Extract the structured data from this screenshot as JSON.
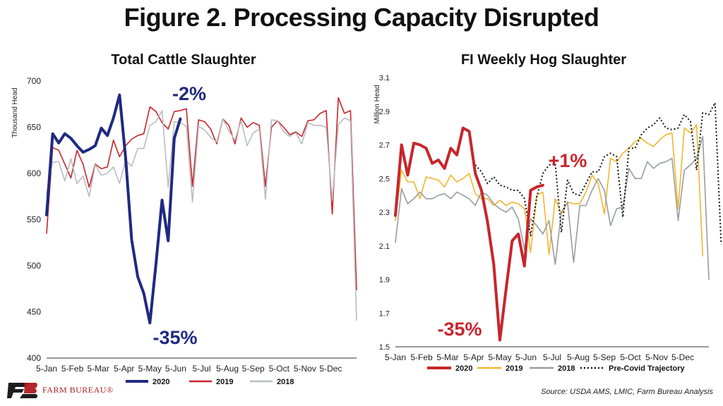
{
  "header": {
    "title": "Figure 2. Processing Capacity Disrupted"
  },
  "footer": {
    "source": "Source: USDA AMS, LMIC, Farm Bureau Analysis",
    "logo_text": "FARM BUREAU®",
    "logo_icon": "farm-bureau-logo-icon"
  },
  "colors": {
    "navy": "#1f2a80",
    "red": "#c8252b",
    "gray": "#b9bcbf",
    "gold": "#f0b72f",
    "darkgray": "#999c9f",
    "black": "#111111"
  },
  "chart_data": [
    {
      "type": "line",
      "title": "Total Cattle Slaughter",
      "ylabel": "Thousand Head",
      "ylim": [
        400,
        700
      ],
      "yticks": [
        "400",
        "450",
        "500",
        "550",
        "600",
        "650",
        "700"
      ],
      "x_tick_labels": [
        "5-Jan",
        "5-Feb",
        "5-Mar",
        "5-Apr",
        "5-May",
        "5-Jun",
        "5-Jul",
        "5-Aug",
        "5-Sep",
        "5-Oct",
        "5-Nov",
        "5-Dec"
      ],
      "x_weeks": 52,
      "series": [
        {
          "name": "2020",
          "color": "#1f2a80",
          "width": 4,
          "values": [
            555,
            643,
            633,
            643,
            638,
            630,
            623,
            626,
            630,
            649,
            641,
            660,
            685,
            617,
            528,
            488,
            470,
            438,
            502,
            571,
            527,
            638,
            659
          ]
        },
        {
          "name": "2019",
          "color": "#c8252b",
          "width": 1.6,
          "values": [
            535,
            628,
            625,
            610,
            595,
            625,
            610,
            585,
            610,
            605,
            607,
            636,
            618,
            630,
            637,
            641,
            643,
            672,
            667,
            655,
            648,
            667,
            668,
            670,
            586,
            658,
            656,
            648,
            632,
            659,
            652,
            632,
            660,
            650,
            655,
            652,
            586,
            650,
            657,
            650,
            642,
            645,
            640,
            657,
            658,
            665,
            668,
            556,
            682,
            665,
            668,
            474
          ]
        },
        {
          "name": "2018",
          "color": "#b9bcbf",
          "width": 1.6,
          "values": [
            578,
            612,
            613,
            592,
            616,
            589,
            597,
            575,
            609,
            598,
            600,
            607,
            589,
            614,
            608,
            627,
            627,
            652,
            656,
            668,
            585,
            656,
            655,
            651,
            569,
            651,
            647,
            639,
            634,
            659,
            646,
            636,
            657,
            630,
            644,
            648,
            572,
            658,
            657,
            645,
            640,
            644,
            632,
            655,
            652,
            652,
            650,
            571,
            653,
            660,
            657,
            441
          ]
        }
      ],
      "annotations": [
        {
          "text": "-2%",
          "color": "#1f2a80"
        },
        {
          "text": "-35%",
          "color": "#1f2a80"
        }
      ]
    },
    {
      "type": "line",
      "title": "FI Weekly Hog Slaughter",
      "ylabel": "Million Head",
      "ylim": [
        1.5,
        3.1
      ],
      "yticks": [
        "1.5",
        "1.7",
        "1.9",
        "2.1",
        "2.3",
        "2.5",
        "2.7",
        "2.9",
        "3.1"
      ],
      "x_tick_labels": [
        "5-Jan",
        "5-Feb",
        "5-Mar",
        "5-Apr",
        "5-May",
        "5-Jun",
        "5-Jul",
        "5-Aug",
        "5-Sep",
        "5-Oct",
        "5-Nov",
        "5-Dec"
      ],
      "x_weeks": 52,
      "series": [
        {
          "name": "2020",
          "color": "#c8252b",
          "width": 4,
          "values": [
            2.28,
            2.7,
            2.52,
            2.71,
            2.7,
            2.68,
            2.59,
            2.61,
            2.56,
            2.68,
            2.64,
            2.8,
            2.78,
            2.53,
            2.43,
            2.24,
            1.99,
            1.54,
            1.84,
            2.13,
            2.17,
            1.98,
            2.43,
            2.45,
            2.46
          ]
        },
        {
          "name": "2019",
          "color": "#f0b72f",
          "width": 1.6,
          "values": [
            2.25,
            2.55,
            2.48,
            2.48,
            2.38,
            2.51,
            2.5,
            2.49,
            2.45,
            2.52,
            2.48,
            2.5,
            2.53,
            2.41,
            2.38,
            2.38,
            2.34,
            2.37,
            2.34,
            2.36,
            2.35,
            2.32,
            2.06,
            2.4,
            2.42,
            2.05,
            2.38,
            2.29,
            2.36,
            2.35,
            2.35,
            2.42,
            2.52,
            2.47,
            2.29,
            2.62,
            2.6,
            2.65,
            2.68,
            2.72,
            2.74,
            2.71,
            2.69,
            2.73,
            2.76,
            2.77,
            2.32,
            2.8,
            2.77,
            2.82,
            2.04
          ]
        },
        {
          "name": "2018",
          "color": "#999c9f",
          "width": 1.6,
          "values": [
            2.12,
            2.44,
            2.35,
            2.38,
            2.42,
            2.38,
            2.38,
            2.4,
            2.41,
            2.38,
            2.42,
            2.4,
            2.38,
            2.34,
            2.42,
            2.4,
            2.35,
            2.32,
            2.3,
            2.33,
            2.26,
            2.08,
            2.26,
            2.22,
            2.17,
            2.25,
            1.99,
            2.3,
            2.36,
            2.0,
            2.34,
            2.34,
            2.43,
            2.5,
            2.43,
            2.22,
            2.32,
            2.33,
            2.56,
            2.5,
            2.5,
            2.6,
            2.56,
            2.59,
            2.6,
            2.62,
            2.25,
            2.55,
            2.58,
            2.62,
            2.75,
            1.9
          ]
        },
        {
          "name": "Pre-Covid Trajectory",
          "color": "#111111",
          "width": 2,
          "dashed": true,
          "start_week": 13,
          "values": [
            2.58,
            2.54,
            2.47,
            2.51,
            2.46,
            2.45,
            2.43,
            2.43,
            2.38,
            2.16,
            2.39,
            2.53,
            2.58,
            2.59,
            2.18,
            2.49,
            2.41,
            2.4,
            2.47,
            2.54,
            2.54,
            2.63,
            2.65,
            2.63,
            2.27,
            2.68,
            2.68,
            2.76,
            2.8,
            2.82,
            2.86,
            2.8,
            2.79,
            2.8,
            2.88,
            2.84,
            2.55,
            2.89,
            2.88,
            2.95,
            2.11
          ]
        }
      ],
      "annotations": [
        {
          "text": "+1%",
          "color": "#c8252b"
        },
        {
          "text": "-35%",
          "color": "#c8252b"
        }
      ]
    }
  ]
}
